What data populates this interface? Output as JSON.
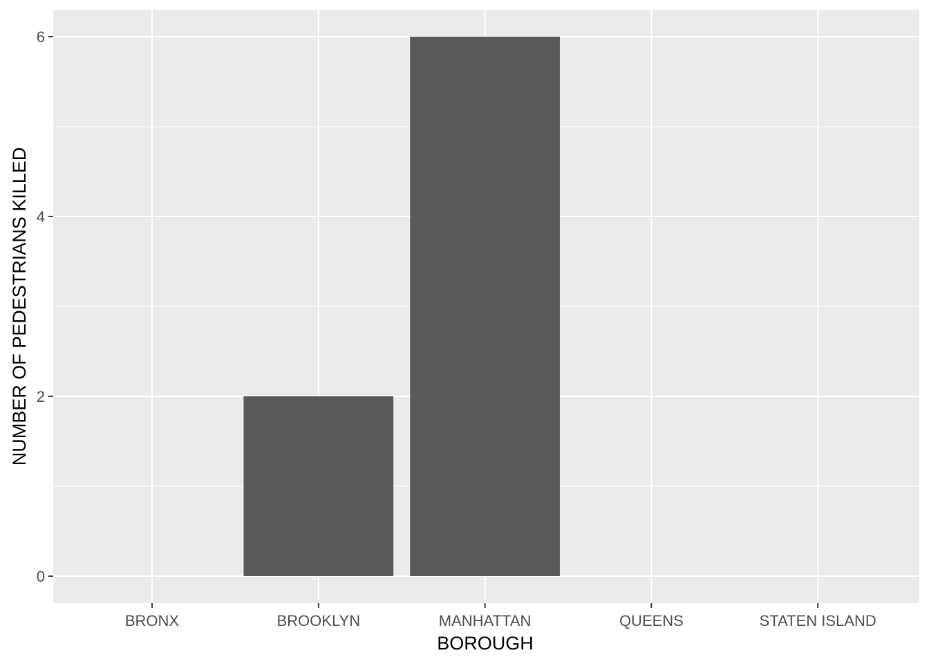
{
  "chart_data": {
    "type": "bar",
    "categories": [
      "BRONX",
      "BROOKLYN",
      "MANHATTAN",
      "QUEENS",
      "STATEN ISLAND"
    ],
    "values": [
      0,
      2,
      6,
      0,
      0
    ],
    "xlabel": "BOROUGH",
    "ylabel": "NUMBER OF PEDESTRIANS KILLED",
    "ylim": [
      -0.3,
      6.3
    ],
    "yticks": [
      0,
      2,
      4,
      6
    ],
    "yticks_minor": [
      1,
      3,
      5
    ],
    "grid": true,
    "legend": "none",
    "colors": {
      "panel_background": "#EBEBEB",
      "grid": "#FFFFFF",
      "bar_fill": "#595959",
      "tick_label": "#4D4D4D",
      "tick_mark": "#333333",
      "axis_title": "#000000"
    }
  }
}
